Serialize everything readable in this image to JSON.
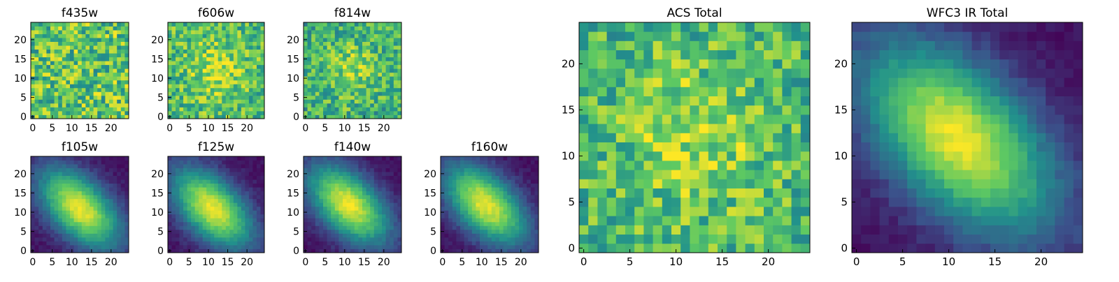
{
  "figure": {
    "colormap": "viridis",
    "colormap_stops": [
      "#440154",
      "#3b528b",
      "#21918c",
      "#5ec962",
      "#fde725"
    ]
  },
  "chart_data": [
    {
      "type": "heatmap",
      "title": "f435w",
      "grid": [
        25,
        25
      ],
      "xticks": [
        0,
        5,
        10,
        15,
        20
      ],
      "yticks": [
        0,
        5,
        10,
        15,
        20
      ],
      "xlim": [
        0,
        25
      ],
      "ylim": [
        0,
        25
      ],
      "pattern": "noise",
      "level": 0.72
    },
    {
      "type": "heatmap",
      "title": "f606w",
      "grid": [
        25,
        25
      ],
      "xticks": [
        0,
        5,
        10,
        15,
        20
      ],
      "yticks": [
        0,
        5,
        10,
        15,
        20
      ],
      "xlim": [
        0,
        25
      ],
      "ylim": [
        0,
        25
      ],
      "pattern": "noise_bright_center",
      "level": 0.68
    },
    {
      "type": "heatmap",
      "title": "f814w",
      "grid": [
        25,
        25
      ],
      "xticks": [
        0,
        5,
        10,
        15,
        20
      ],
      "yticks": [
        0,
        5,
        10,
        15,
        20
      ],
      "xlim": [
        0,
        25
      ],
      "ylim": [
        0,
        25
      ],
      "pattern": "noise_bright_center",
      "level": 0.62
    },
    {
      "type": "heatmap",
      "title": "f105w",
      "grid": [
        25,
        25
      ],
      "xticks": [
        0,
        5,
        10,
        15,
        20
      ],
      "yticks": [
        0,
        5,
        10,
        15,
        20
      ],
      "xlim": [
        0,
        25
      ],
      "ylim": [
        0,
        25
      ],
      "pattern": "galaxy",
      "peak": [
        12,
        11
      ]
    },
    {
      "type": "heatmap",
      "title": "f125w",
      "grid": [
        25,
        25
      ],
      "xticks": [
        0,
        5,
        10,
        15,
        20
      ],
      "yticks": [
        0,
        5,
        10,
        15,
        20
      ],
      "xlim": [
        0,
        25
      ],
      "ylim": [
        0,
        25
      ],
      "pattern": "galaxy",
      "peak": [
        11,
        11
      ]
    },
    {
      "type": "heatmap",
      "title": "f140w",
      "grid": [
        25,
        25
      ],
      "xticks": [
        0,
        5,
        10,
        15,
        20
      ],
      "yticks": [
        0,
        5,
        10,
        15,
        20
      ],
      "xlim": [
        0,
        25
      ],
      "ylim": [
        0,
        25
      ],
      "pattern": "galaxy",
      "peak": [
        11,
        12
      ]
    },
    {
      "type": "heatmap",
      "title": "f160w",
      "grid": [
        25,
        25
      ],
      "xticks": [
        0,
        5,
        10,
        15,
        20
      ],
      "yticks": [
        0,
        5,
        10,
        15,
        20
      ],
      "xlim": [
        0,
        25
      ],
      "ylim": [
        0,
        25
      ],
      "pattern": "galaxy",
      "peak": [
        11,
        12
      ]
    },
    {
      "type": "heatmap",
      "title": "ACS Total",
      "grid": [
        25,
        25
      ],
      "xticks": [
        0,
        5,
        10,
        15,
        20
      ],
      "yticks": [
        0,
        5,
        10,
        15,
        20
      ],
      "xlim": [
        0,
        25
      ],
      "ylim": [
        0,
        25
      ],
      "pattern": "noise_bright_center",
      "level": 0.66
    },
    {
      "type": "heatmap",
      "title": "WFC3 IR Total",
      "grid": [
        25,
        25
      ],
      "xticks": [
        0,
        5,
        10,
        15,
        20
      ],
      "yticks": [
        0,
        5,
        10,
        15,
        20
      ],
      "xlim": [
        0,
        25
      ],
      "ylim": [
        0,
        25
      ],
      "pattern": "galaxy",
      "peak": [
        11,
        12
      ]
    }
  ]
}
